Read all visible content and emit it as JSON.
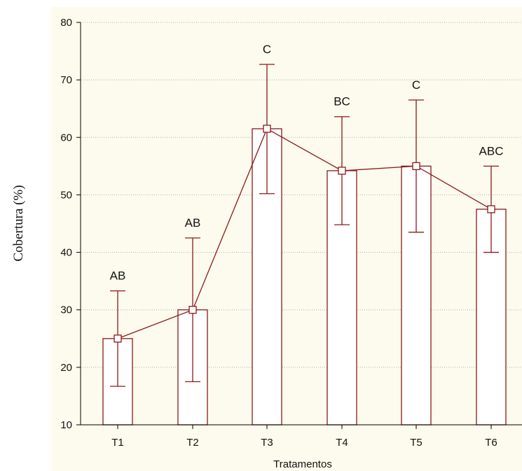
{
  "chart_data": {
    "type": "bar",
    "xlabel": "Tratamentos",
    "ylabel": "Cobertura (%)",
    "categories": [
      "T1",
      "T2",
      "T3",
      "T4",
      "T5",
      "T6"
    ],
    "values": [
      25.0,
      30.0,
      61.5,
      54.2,
      55.0,
      47.5
    ],
    "error_low": [
      16.7,
      17.5,
      50.2,
      44.8,
      43.5,
      40.0
    ],
    "error_high": [
      33.3,
      42.5,
      72.7,
      63.6,
      66.5,
      55.0
    ],
    "significance_labels": [
      "AB",
      "AB",
      "C",
      "BC",
      "C",
      "ABC"
    ],
    "ylim": [
      10,
      80
    ],
    "yticks": [
      10,
      20,
      30,
      40,
      50,
      60,
      70,
      80
    ],
    "grid": true,
    "connecting_line": true,
    "colors": {
      "bar_edge": "#8b1a1a",
      "bar_fill": "#ffffff",
      "plot_background": "#fdfbed",
      "gridline": "#b0b0b0",
      "axis": "#000000"
    }
  }
}
